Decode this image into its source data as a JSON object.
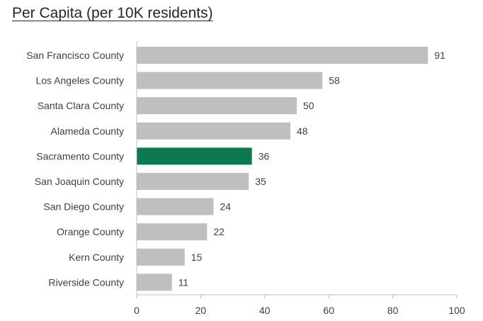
{
  "chart_data": {
    "type": "bar",
    "orientation": "horizontal",
    "title": "Per Capita (per 10K residents)",
    "categories": [
      "San Francisco County",
      "Los Angeles County",
      "Santa Clara County",
      "Alameda County",
      "Sacramento County",
      "San Joaquin County",
      "San Diego County",
      "Orange County",
      "Kern County",
      "Riverside County"
    ],
    "values": [
      91,
      58,
      50,
      48,
      36,
      35,
      24,
      22,
      15,
      11
    ],
    "value_labels": [
      "91",
      "58",
      "50",
      "48",
      "36",
      "35",
      "24",
      "22",
      "15",
      "11"
    ],
    "highlight_category": "Sacramento County",
    "xlim": [
      0,
      100
    ],
    "xticks": [
      0,
      20,
      40,
      60,
      80,
      100
    ],
    "xtick_labels": [
      "0",
      "20",
      "40",
      "60",
      "80",
      "100"
    ],
    "xlabel": "",
    "ylabel": "",
    "grid": false,
    "legend": "none",
    "colors": {
      "bar": "#bfbfbf",
      "highlight": "#0b7a4f",
      "axis": "#bfbfbf",
      "text": "#404040"
    }
  }
}
